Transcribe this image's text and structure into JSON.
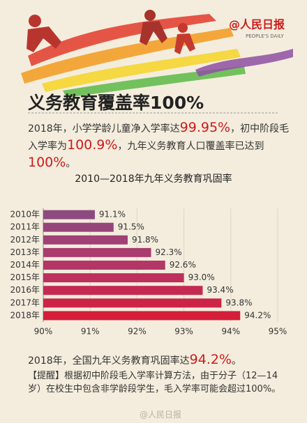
{
  "logo": {
    "name": "@人民日报",
    "sub": "PEOPLE'S DAILY"
  },
  "title": "义务教育覆盖率100%",
  "intro": [
    "2018年，小学学龄儿童净入学率达",
    "99.95%",
    "，初中阶段毛入学率为",
    "100.9%",
    "，九年义务教育人口覆盖率已达到",
    "100%",
    "。"
  ],
  "chart_data": {
    "type": "bar",
    "orientation": "horizontal",
    "title": "2010—2018年九年义务教育巩固率",
    "categories": [
      "2010年",
      "2011年",
      "2012年",
      "2013年",
      "2014年",
      "2015年",
      "2016年",
      "2017年",
      "2018年"
    ],
    "values": [
      91.1,
      91.5,
      91.8,
      92.3,
      92.6,
      93.0,
      93.4,
      93.8,
      94.2
    ],
    "value_labels": [
      "91.1%",
      "91.5%",
      "91.8%",
      "92.3%",
      "92.6%",
      "93.0%",
      "93.4%",
      "93.8%",
      "94.2%"
    ],
    "colors": [
      "#8c4a80",
      "#96457b",
      "#a04075",
      "#a93b6e",
      "#b23666",
      "#bb305c",
      "#c42a51",
      "#cc2446",
      "#d41e3b"
    ],
    "xlim": [
      90,
      95
    ],
    "xticks": [
      {
        "value": 90,
        "label": "90%"
      },
      {
        "value": 91,
        "label": "91%"
      },
      {
        "value": 92,
        "label": "92%"
      },
      {
        "value": 93,
        "label": "93%"
      },
      {
        "value": 94,
        "label": "94%"
      },
      {
        "value": 95,
        "label": "95%"
      }
    ],
    "grid": true
  },
  "summary": [
    "2018年，全国九年义务教育巩固率达",
    "94.2%",
    "。"
  ],
  "note": "【提醒】根据初中阶段毛入学率计算方法，由于分子（12—14岁）在校生中包含非学龄段学生，毛入学率可能会超过100%。",
  "watermark": "@人民日报"
}
